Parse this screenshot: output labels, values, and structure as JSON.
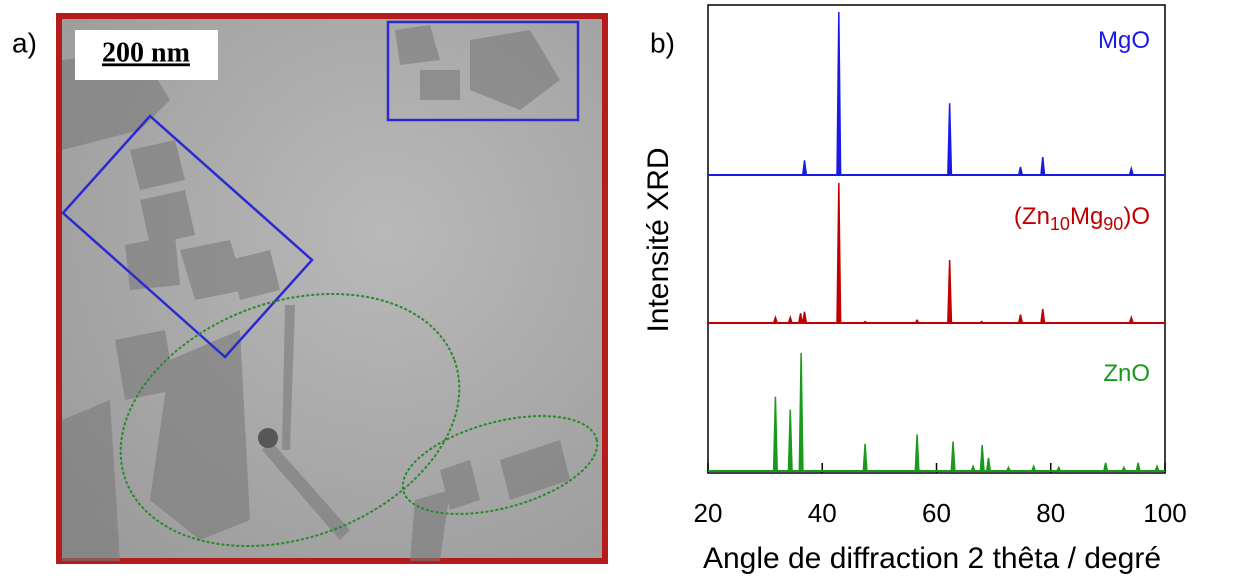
{
  "panel_a": {
    "label": "a)",
    "scale_bar": "200 nm"
  },
  "chart_data": {
    "type": "xrd",
    "label": "b)",
    "y_label": "Intensité XRD",
    "x_label": "Angle de diffraction 2 thêta / degré",
    "xlim": [
      20,
      100
    ],
    "xticks": [
      20,
      40,
      60,
      80,
      100
    ],
    "series": [
      {
        "name": "MgO",
        "color": "#1a1ae6",
        "x": [
          36.9,
          42.9,
          62.3,
          74.7,
          78.6,
          94.1
        ],
        "values": [
          9,
          100,
          44,
          5,
          11,
          4
        ]
      },
      {
        "name": "(Zn10Mg90)O",
        "color": "#c00000",
        "x": [
          31.8,
          34.4,
          36.2,
          36.9,
          42.9,
          47.5,
          56.6,
          62.3,
          67.9,
          74.7,
          78.6,
          94.1
        ],
        "values": [
          4,
          4,
          7,
          8,
          100,
          1,
          2,
          45,
          1,
          6,
          10,
          4
        ]
      },
      {
        "name": "ZnO",
        "color": "#1a9a1a",
        "x": [
          31.8,
          34.4,
          36.3,
          47.5,
          56.6,
          62.9,
          66.4,
          68.0,
          69.1,
          72.6,
          77.0,
          81.4,
          89.6,
          92.8,
          95.3,
          98.6
        ],
        "values": [
          63,
          52,
          100,
          23,
          31,
          25,
          4,
          22,
          11,
          3,
          4,
          3,
          7,
          3,
          7,
          4
        ]
      }
    ]
  }
}
